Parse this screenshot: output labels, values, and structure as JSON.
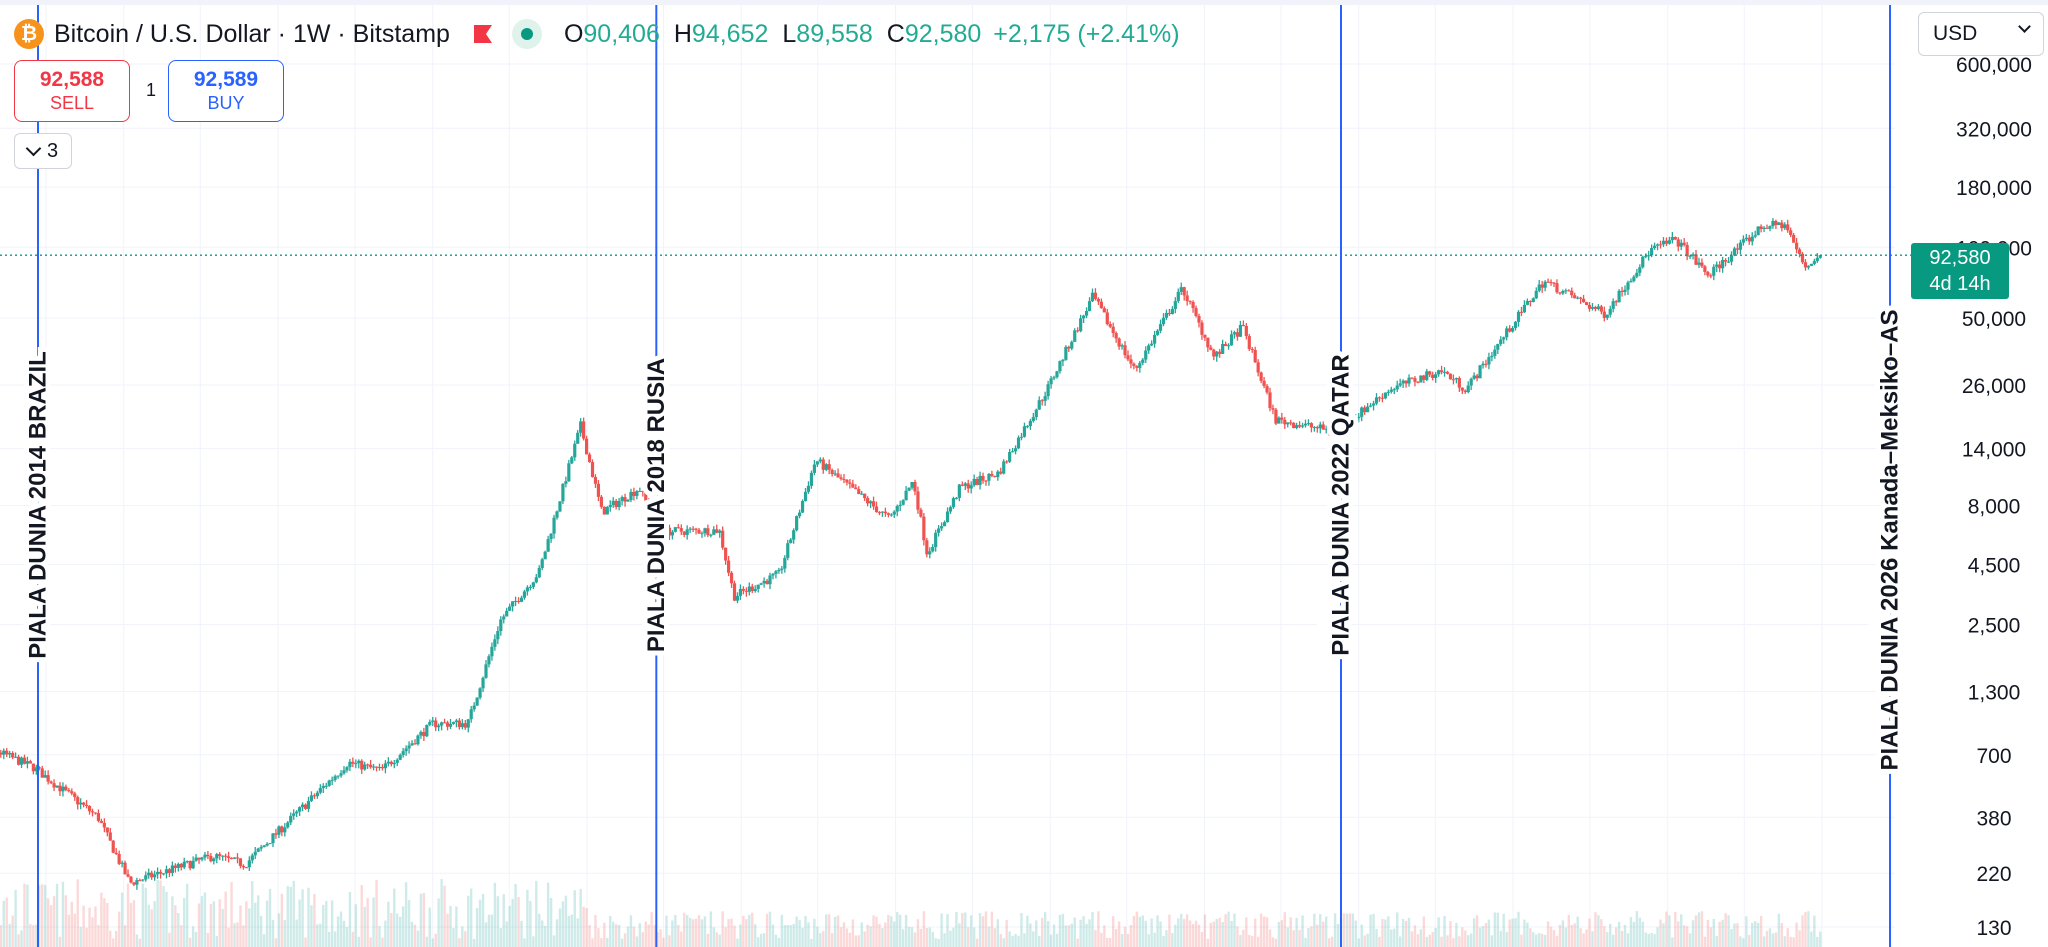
{
  "legend": {
    "title": "Bitcoin / U.S. Dollar · 1W · Bitstamp",
    "coin_glyph": "₿",
    "open_label": "O",
    "open": "90,406",
    "high_label": "H",
    "high": "94,652",
    "low_label": "L",
    "low": "89,558",
    "close_label": "C",
    "close": "92,580",
    "change": "+2,175 (+2.41%)"
  },
  "trade": {
    "sell_price": "92,588",
    "sell_label": "SELL",
    "quantity": "1",
    "buy_price": "92,589",
    "buy_label": "BUY"
  },
  "collapse_count": "3",
  "currency": "USD",
  "price_label": {
    "price": "92,580",
    "countdown": "4d 14h"
  },
  "colors": {
    "up": "#26a69a",
    "down": "#ef5350",
    "marker": "#2962ff",
    "badge": "#089981"
  },
  "icons": [
    "bitcoin-icon",
    "flag-icon",
    "market-open-dot-icon",
    "chevron-down-icon"
  ],
  "chart_data": {
    "type": "candlestick",
    "symbol": "BTCUSD",
    "interval": "1W",
    "scale": "log",
    "ylim": [
      125,
      650000
    ],
    "xlim": [
      "2013-12-01",
      "2026-10-01"
    ],
    "grid": true,
    "y_ticks": [
      "600,000",
      "320,000",
      "180,000",
      "100,000",
      "50,000",
      "26,000",
      "14,000",
      "8,000",
      "4,500",
      "2,500",
      "1,300",
      "700",
      "380",
      "220",
      "130"
    ],
    "y_tick_values": [
      600000,
      320000,
      180000,
      100000,
      50000,
      26000,
      14000,
      8000,
      4500,
      2500,
      1300,
      700,
      380,
      220,
      130
    ],
    "last_price": 92580,
    "price_anchors": [
      [
        "2013-12-01",
        600
      ],
      [
        "2014-01-10",
        800
      ],
      [
        "2014-06-01",
        620
      ],
      [
        "2014-11-01",
        380
      ],
      [
        "2015-01-15",
        200
      ],
      [
        "2015-08-01",
        260
      ],
      [
        "2015-10-15",
        240
      ],
      [
        "2016-06-15",
        650
      ],
      [
        "2016-09-01",
        600
      ],
      [
        "2017-01-01",
        950
      ],
      [
        "2017-03-25",
        950
      ],
      [
        "2017-06-10",
        2600
      ],
      [
        "2017-09-10",
        4200
      ],
      [
        "2017-12-17",
        17500
      ],
      [
        "2018-02-05",
        7500
      ],
      [
        "2018-05-05",
        9500
      ],
      [
        "2018-06-20",
        6200
      ],
      [
        "2018-11-10",
        6300
      ],
      [
        "2018-12-15",
        3300
      ],
      [
        "2019-04-01",
        4100
      ],
      [
        "2019-06-26",
        12500
      ],
      [
        "2019-09-01",
        10000
      ],
      [
        "2019-12-18",
        7000
      ],
      [
        "2020-02-12",
        10200
      ],
      [
        "2020-03-16",
        5000
      ],
      [
        "2020-06-01",
        9500
      ],
      [
        "2020-09-01",
        11000
      ],
      [
        "2020-12-25",
        25000
      ],
      [
        "2021-04-12",
        62000
      ],
      [
        "2021-07-20",
        30000
      ],
      [
        "2021-11-10",
        67000
      ],
      [
        "2022-01-24",
        34000
      ],
      [
        "2022-04-01",
        46000
      ],
      [
        "2022-06-18",
        18500
      ],
      [
        "2022-11-09",
        16500
      ],
      [
        "2023-03-15",
        25000
      ],
      [
        "2023-07-15",
        30000
      ],
      [
        "2023-09-12",
        25000
      ],
      [
        "2023-12-15",
        43000
      ],
      [
        "2024-03-14",
        72000
      ],
      [
        "2024-08-05",
        52000
      ],
      [
        "2024-11-20",
        97000
      ],
      [
        "2025-01-20",
        108000
      ],
      [
        "2025-04-07",
        76000
      ],
      [
        "2025-08-14",
        123000
      ],
      [
        "2025-10-06",
        125000
      ],
      [
        "2025-11-21",
        82000
      ],
      [
        "2025-12-28",
        92580
      ]
    ],
    "annotations": [
      {
        "date": "2014-06-12",
        "text": "PIALA DUNIA 2014 BRAZIL"
      },
      {
        "date": "2018-06-14",
        "text": "PIALA DUNIA 2018 RUSIA"
      },
      {
        "date": "2022-11-20",
        "text": "PIALA DUNIA 2022 QATAR"
      },
      {
        "date": "2026-06-11",
        "text": "PIALA DUNIA 2026 Kanada–Meksiko–AS"
      }
    ]
  }
}
